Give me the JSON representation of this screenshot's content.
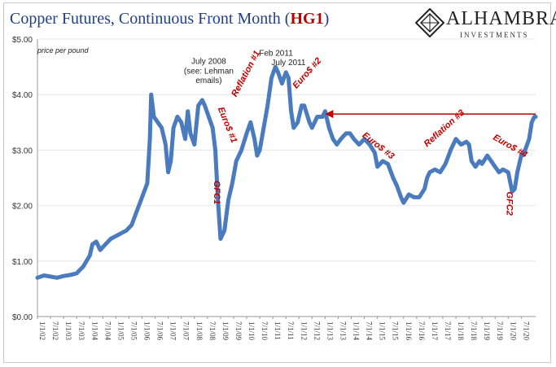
{
  "header": {
    "title_main": "Copper Futures, Continuous Front Month (",
    "title_symbol": "HG1",
    "title_close": ")",
    "logo_name": "ALHAMBRA",
    "logo_sub": "INVESTMENTS"
  },
  "colors": {
    "series": "#4a7bbf",
    "annotation": "#c00000",
    "title": "#1f3f8a"
  },
  "chart_data": {
    "type": "line",
    "title": "Copper Futures, Continuous Front Month (HG1)",
    "ylabel": "price per pound",
    "ylim": [
      0,
      5
    ],
    "yticks": [
      "$0.00",
      "$1.00",
      "$2.00",
      "$3.00",
      "$4.00",
      "$5.00"
    ],
    "xticks": [
      "1/1/02",
      "7/1/02",
      "1/1/03",
      "7/1/03",
      "1/1/04",
      "7/1/04",
      "1/1/05",
      "7/1/05",
      "1/1/06",
      "7/1/06",
      "1/1/07",
      "7/1/07",
      "1/1/08",
      "7/1/08",
      "1/1/09",
      "7/1/09",
      "1/1/10",
      "7/1/10",
      "1/1/11",
      "7/1/11",
      "1/1/12",
      "7/1/12",
      "1/1/13",
      "7/1/13",
      "1/1/14",
      "7/1/14",
      "1/1/15",
      "7/1/15",
      "1/1/16",
      "7/1/16",
      "1/1/17",
      "7/1/17",
      "1/1/18",
      "7/1/18",
      "1/1/19",
      "7/1/19",
      "1/1/20",
      "7/1/20"
    ],
    "series": [
      {
        "x": [
          2002.0,
          2002.25,
          2002.5,
          2002.75,
          2003.0,
          2003.25,
          2003.5,
          2003.75,
          2004.0,
          2004.1,
          2004.25,
          2004.4,
          2004.6,
          2004.8,
          2005.0,
          2005.2,
          2005.4,
          2005.6,
          2005.8,
          2006.0,
          2006.2,
          2006.3,
          2006.35,
          2006.45,
          2006.6,
          2006.75,
          2006.9,
          2007.0,
          2007.1,
          2007.2,
          2007.35,
          2007.5,
          2007.65,
          2007.75,
          2007.85,
          2008.0,
          2008.15,
          2008.3,
          2008.4,
          2008.55,
          2008.7,
          2008.8,
          2008.9,
          2009.0,
          2009.15,
          2009.3,
          2009.45,
          2009.6,
          2009.8,
          2010.0,
          2010.15,
          2010.3,
          2010.4,
          2010.5,
          2010.65,
          2010.8,
          2010.95,
          2011.1,
          2011.2,
          2011.35,
          2011.5,
          2011.6,
          2011.7,
          2011.8,
          2011.95,
          2012.1,
          2012.2,
          2012.4,
          2012.5,
          2012.7,
          2012.9,
          2013.0,
          2013.15,
          2013.3,
          2013.45,
          2013.6,
          2013.8,
          2013.95,
          2014.1,
          2014.3,
          2014.5,
          2014.7,
          2014.9,
          2015.0,
          2015.2,
          2015.4,
          2015.6,
          2015.75,
          2015.9,
          2016.0,
          2016.2,
          2016.4,
          2016.6,
          2016.8,
          2016.9,
          2017.0,
          2017.2,
          2017.4,
          2017.6,
          2017.8,
          2018.0,
          2018.2,
          2018.4,
          2018.5,
          2018.6,
          2018.75,
          2018.9,
          2019.0,
          2019.2,
          2019.35,
          2019.5,
          2019.65,
          2019.8,
          2020.0,
          2020.15,
          2020.25,
          2020.35,
          2020.5,
          2020.65,
          2020.8,
          2020.9,
          2021.0,
          2021.05
        ],
        "y": [
          0.7,
          0.74,
          0.72,
          0.7,
          0.73,
          0.75,
          0.78,
          0.9,
          1.1,
          1.3,
          1.35,
          1.2,
          1.3,
          1.4,
          1.45,
          1.5,
          1.55,
          1.65,
          1.9,
          2.15,
          2.4,
          3.2,
          4.0,
          3.6,
          3.5,
          3.4,
          3.1,
          2.6,
          2.8,
          3.4,
          3.6,
          3.5,
          3.2,
          3.7,
          3.3,
          3.1,
          3.8,
          3.9,
          3.8,
          3.6,
          3.4,
          3.0,
          2.1,
          1.4,
          1.55,
          2.1,
          2.4,
          2.8,
          3.0,
          3.3,
          3.5,
          3.2,
          2.9,
          3.0,
          3.4,
          3.8,
          4.3,
          4.5,
          4.4,
          4.2,
          4.4,
          4.3,
          3.7,
          3.4,
          3.5,
          3.8,
          3.8,
          3.5,
          3.4,
          3.6,
          3.6,
          3.7,
          3.4,
          3.2,
          3.1,
          3.2,
          3.3,
          3.3,
          3.2,
          3.1,
          3.2,
          3.1,
          2.95,
          2.7,
          2.8,
          2.75,
          2.5,
          2.35,
          2.15,
          2.05,
          2.2,
          2.15,
          2.15,
          2.3,
          2.5,
          2.6,
          2.65,
          2.6,
          2.75,
          3.0,
          3.2,
          3.1,
          3.15,
          3.1,
          2.8,
          2.7,
          2.8,
          2.75,
          2.9,
          2.8,
          2.7,
          2.6,
          2.65,
          2.6,
          2.25,
          2.3,
          2.6,
          2.9,
          3.0,
          3.2,
          3.5,
          3.6,
          3.6
        ]
      }
    ],
    "annotations": [
      {
        "text": "price per pound",
        "x": 2002.0,
        "y": 4.75
      },
      {
        "text": "July 2008",
        "x": 2008.55,
        "y": 4.55
      },
      {
        "text": "(see: Lehman",
        "x": 2008.55,
        "y": 4.38
      },
      {
        "text": "emails)",
        "x": 2008.55,
        "y": 4.21
      },
      {
        "text": "Feb 2011",
        "x": 2011.12,
        "y": 4.7
      },
      {
        "text": "July 2011",
        "x": 2011.6,
        "y": 4.53
      },
      {
        "text": "Euro$ #1",
        "x": 2008.9,
        "y": 3.75
      },
      {
        "text": "GFC1",
        "x": 2008.75,
        "y": 2.45
      },
      {
        "text": "Reflation #1",
        "x": 2009.6,
        "y": 3.95
      },
      {
        "text": "Euro$ #2",
        "x": 2011.9,
        "y": 4.1
      },
      {
        "text": "Euro$ #3",
        "x": 2014.4,
        "y": 3.25
      },
      {
        "text": "Reflation #3",
        "x": 2016.9,
        "y": 3.05
      },
      {
        "text": "Euro$ #4",
        "x": 2019.4,
        "y": 3.2
      },
      {
        "text": "GFC2",
        "x": 2019.95,
        "y": 2.25
      }
    ],
    "reference_line": {
      "from_x": 2013.0,
      "to_x": 2021.05,
      "y": 3.65
    },
    "grid": true
  }
}
